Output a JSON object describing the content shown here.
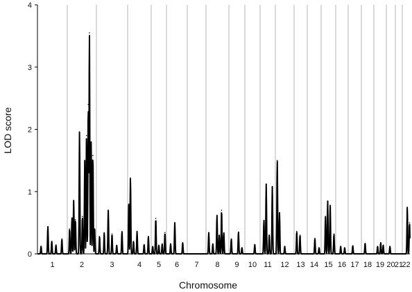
{
  "chart_data": {
    "type": "line",
    "title": "",
    "xlabel": "Chromosome",
    "ylabel": "LOD score",
    "ylim": [
      0,
      4
    ],
    "yticks": [
      "0",
      "1",
      "2",
      "3",
      "4"
    ],
    "grid": "vertical boundaries between chromosomes",
    "line_color": "#000000",
    "grid_color": "#b5b5b5",
    "chromosomes": [
      {
        "label": "1",
        "peaks": [
          [
            0.12,
            0.12
          ],
          [
            0.35,
            0.44
          ],
          [
            0.48,
            0.2
          ],
          [
            0.62,
            0.14
          ],
          [
            0.82,
            0.24
          ]
        ]
      },
      {
        "label": "2",
        "peaks": [
          [
            0.08,
            0.4
          ],
          [
            0.16,
            0.58
          ],
          [
            0.22,
            0.86
          ],
          [
            0.28,
            0.55
          ],
          [
            0.42,
            1.96
          ],
          [
            0.52,
            0.6
          ],
          [
            0.6,
            1.5
          ],
          [
            0.66,
            1.9
          ],
          [
            0.72,
            2.4
          ],
          [
            0.76,
            3.55
          ],
          [
            0.82,
            1.8
          ],
          [
            0.88,
            1.58
          ],
          [
            0.94,
            0.4
          ]
        ]
      },
      {
        "label": "3",
        "peaks": [
          [
            0.1,
            0.28
          ],
          [
            0.25,
            0.34
          ],
          [
            0.38,
            0.7
          ],
          [
            0.5,
            0.32
          ],
          [
            0.65,
            0.14
          ],
          [
            0.82,
            0.36
          ]
        ]
      },
      {
        "label": "4",
        "peaks": [
          [
            0.05,
            0.8
          ],
          [
            0.12,
            1.22
          ],
          [
            0.25,
            0.2
          ],
          [
            0.4,
            0.36
          ],
          [
            0.7,
            0.15
          ],
          [
            0.88,
            0.28
          ]
        ]
      },
      {
        "label": "5",
        "peaks": [
          [
            0.1,
            0.12
          ],
          [
            0.3,
            0.57
          ],
          [
            0.5,
            0.14
          ],
          [
            0.72,
            0.16
          ],
          [
            0.9,
            0.34
          ]
        ]
      },
      {
        "label": "6",
        "peaks": [
          [
            0.2,
            0.16
          ],
          [
            0.4,
            0.5
          ],
          [
            0.78,
            0.18
          ]
        ]
      },
      {
        "label": "7",
        "peaks": []
      },
      {
        "label": "8",
        "peaks": [
          [
            0.12,
            0.34
          ],
          [
            0.3,
            0.16
          ],
          [
            0.48,
            0.62
          ],
          [
            0.58,
            0.3
          ],
          [
            0.68,
            0.7
          ],
          [
            0.78,
            0.34
          ]
        ]
      },
      {
        "label": "9",
        "peaks": [
          [
            0.15,
            0.24
          ],
          [
            0.6,
            0.35
          ],
          [
            0.82,
            0.1
          ]
        ]
      },
      {
        "label": "10",
        "peaks": [
          [
            0.65,
            0.15
          ]
        ]
      },
      {
        "label": "11",
        "peaks": [
          [
            0.25,
            0.54
          ],
          [
            0.4,
            1.12
          ],
          [
            0.6,
            0.3
          ],
          [
            0.8,
            1.08
          ]
        ]
      },
      {
        "label": "12",
        "peaks": [
          [
            0.1,
            1.5
          ],
          [
            0.22,
            0.66
          ],
          [
            0.5,
            0.12
          ]
        ]
      },
      {
        "label": "13",
        "peaks": [
          [
            0.2,
            0.36
          ],
          [
            0.45,
            0.3
          ]
        ]
      },
      {
        "label": "14",
        "peaks": [
          [
            0.55,
            0.25
          ],
          [
            0.85,
            0.1
          ]
        ]
      },
      {
        "label": "15",
        "peaks": [
          [
            0.3,
            0.6
          ],
          [
            0.45,
            0.85
          ],
          [
            0.62,
            0.78
          ],
          [
            0.88,
            0.32
          ]
        ]
      },
      {
        "label": "16",
        "peaks": [
          [
            0.4,
            0.12
          ],
          [
            0.72,
            0.1
          ]
        ]
      },
      {
        "label": "17",
        "peaks": [
          [
            0.35,
            0.13
          ]
        ]
      },
      {
        "label": "18",
        "peaks": [
          [
            0.3,
            0.17
          ]
        ]
      },
      {
        "label": "19",
        "peaks": [
          [
            0.3,
            0.12
          ],
          [
            0.55,
            0.18
          ],
          [
            0.75,
            0.14
          ]
        ]
      },
      {
        "label": "20",
        "peaks": [
          [
            0.4,
            0.12
          ]
        ]
      },
      {
        "label": "21",
        "peaks": []
      },
      {
        "label": "22",
        "peaks": [
          [
            0.65,
            0.75
          ],
          [
            0.95,
            0.5
          ]
        ]
      }
    ]
  }
}
